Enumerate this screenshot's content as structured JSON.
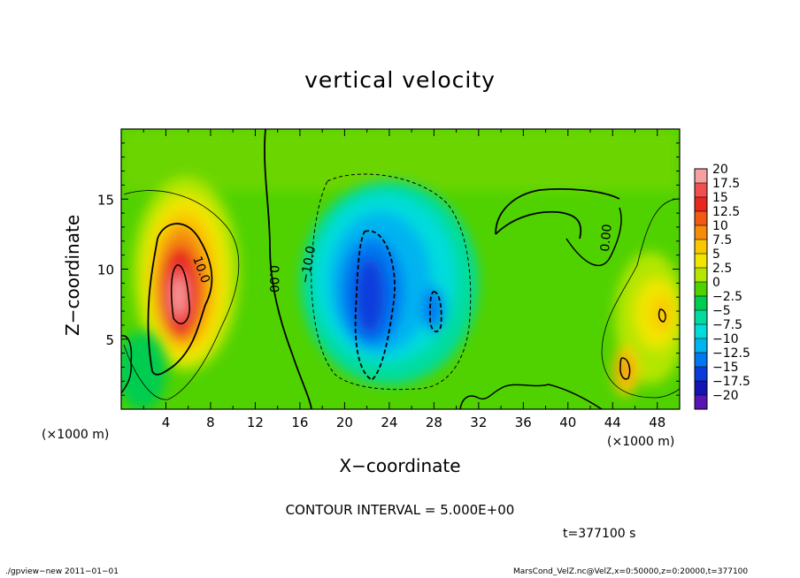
{
  "chart_data": {
    "type": "heatmap",
    "title": "vertical velocity",
    "xlabel": "X−coordinate",
    "ylabel": "Z−coordinate",
    "x_unit": "(×1000 m)",
    "z_unit": "(×1000 m)",
    "xlim": [
      0,
      50
    ],
    "zlim": [
      0,
      20
    ],
    "x_ticks": [
      "4",
      "8",
      "12",
      "16",
      "20",
      "24",
      "28",
      "32",
      "36",
      "40",
      "44",
      "48"
    ],
    "z_ticks": [
      "5",
      "10",
      "15"
    ],
    "colorbar": {
      "range": [
        -20,
        20
      ],
      "labels": [
        "20",
        "17.5",
        "15",
        "12.5",
        "10",
        "7.5",
        "5",
        "2.5",
        "0",
        "−2.5",
        "−5",
        "−7.5",
        "−10",
        "−12.5",
        "−15",
        "−17.5",
        "−20"
      ],
      "colors": [
        "#f7a0a0",
        "#f05050",
        "#e8281e",
        "#f05a14",
        "#f58c0a",
        "#fac800",
        "#f0e600",
        "#b4e600",
        "#50d200",
        "#00cd50",
        "#00dca0",
        "#00dcdc",
        "#00b4f0",
        "#0078f0",
        "#0a3cdc",
        "#1414b4",
        "#5a14b4"
      ]
    },
    "contour_labels": [
      "10.0",
      "0.00",
      "−10.0",
      "0.00"
    ],
    "contour_interval_text": "CONTOUR INTERVAL = 5.000E+00",
    "grid": false,
    "features": [
      {
        "kind": "updraft",
        "x": 5.5,
        "z": 8.5,
        "peak": 20
      },
      {
        "kind": "downdraft",
        "x": 22.5,
        "z": 8.5,
        "peak": -13
      },
      {
        "kind": "updraft",
        "x": 48.5,
        "z": 6.5,
        "peak": 10
      },
      {
        "kind": "updraft",
        "x": 45.2,
        "z": 3.0,
        "peak": 10
      }
    ]
  },
  "time_label": "t=377100 s",
  "footer": {
    "left": "./gpview−new   2011−01−01",
    "right": "MarsCond_VelZ.nc@VelZ,x=0:50000,z=0:20000,t=377100"
  }
}
